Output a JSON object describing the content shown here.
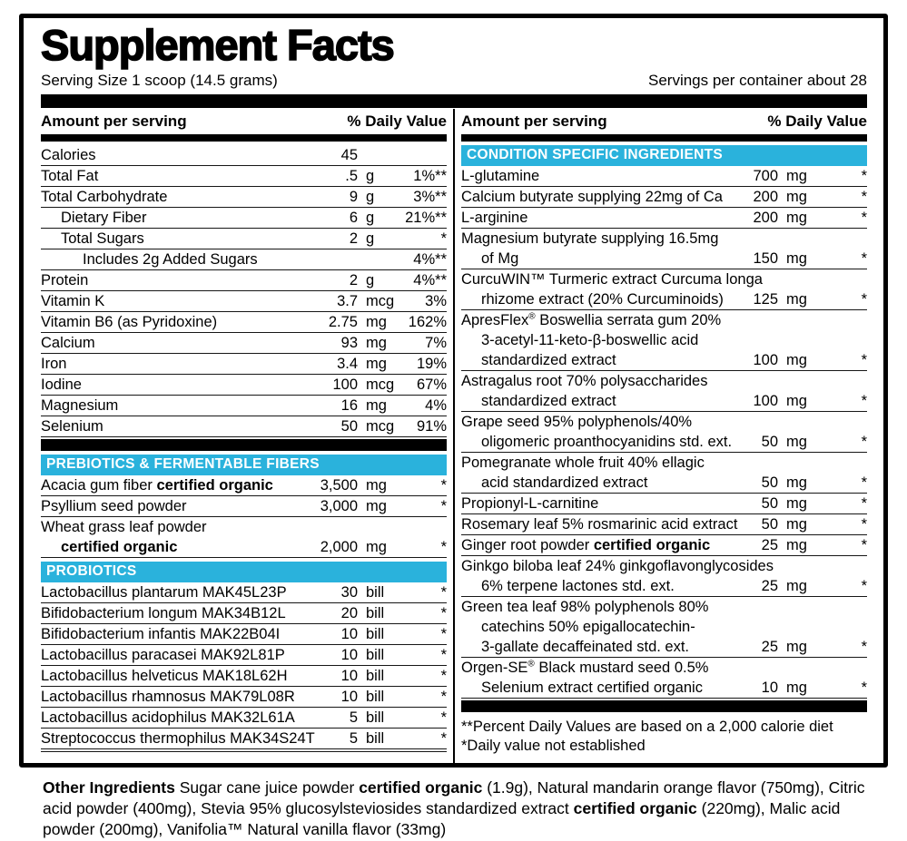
{
  "title": "Supplement Facts",
  "serving_size": "Serving Size 1 scoop (14.5 grams)",
  "servings_per_container": "Servings per container about 28",
  "column_header": {
    "amount": "Amount per serving",
    "daily_value": "% Daily Value"
  },
  "colors": {
    "accent_cyan": "#2ab2dc",
    "bar_black": "#000000",
    "background": "#ffffff"
  },
  "left_column": {
    "nutrients": [
      {
        "name": "Calories",
        "amount": "45",
        "unit": "",
        "dv": "",
        "indent": 0
      },
      {
        "name": "Total Fat",
        "amount": ".5",
        "unit": "g",
        "dv": "1%**",
        "indent": 0
      },
      {
        "name": "Total Carbohydrate",
        "amount": "9",
        "unit": "g",
        "dv": "3%**",
        "indent": 0
      },
      {
        "name": "Dietary Fiber",
        "amount": "6",
        "unit": "g",
        "dv": "21%**",
        "indent": 1
      },
      {
        "name": "Total Sugars",
        "amount": "2",
        "unit": "g",
        "dv": "*",
        "indent": 1
      },
      {
        "name": "Includes 2g Added Sugars",
        "amount": "",
        "unit": "",
        "dv": "4%**",
        "indent": 2
      },
      {
        "name": "Protein",
        "amount": "2",
        "unit": "g",
        "dv": "4%**",
        "indent": 0
      },
      {
        "name": "Vitamin K",
        "amount": "3.7",
        "unit": "mcg",
        "dv": "3%",
        "indent": 0
      },
      {
        "name": "Vitamin B6 (as Pyridoxine)",
        "amount": "2.75",
        "unit": "mg",
        "dv": "162%",
        "indent": 0
      },
      {
        "name": "Calcium",
        "amount": "93",
        "unit": "mg",
        "dv": "7%",
        "indent": 0
      },
      {
        "name": "Iron",
        "amount": "3.4",
        "unit": "mg",
        "dv": "19%",
        "indent": 0
      },
      {
        "name": "Iodine",
        "amount": "100",
        "unit": "mcg",
        "dv": "67%",
        "indent": 0
      },
      {
        "name": "Magnesium",
        "amount": "16",
        "unit": "mg",
        "dv": "4%",
        "indent": 0
      },
      {
        "name": "Selenium",
        "amount": "50",
        "unit": "mcg",
        "dv": "91%",
        "indent": 0
      }
    ],
    "sections": [
      {
        "header": "PREBIOTICS & FERMENTABLE FIBERS",
        "bar_before": true,
        "rows": [
          {
            "lines": [
              {
                "parts": [
                  {
                    "t": "Acacia gum fiber "
                  },
                  {
                    "t": "certified organic",
                    "b": true
                  }
                ]
              }
            ],
            "amount": "3,500",
            "unit": "mg",
            "dv": "*"
          },
          {
            "lines": [
              {
                "parts": [
                  {
                    "t": "Psyllium seed powder"
                  }
                ]
              }
            ],
            "amount": "3,000",
            "unit": "mg",
            "dv": "*"
          },
          {
            "lines": [
              {
                "parts": [
                  {
                    "t": "Wheat grass leaf powder"
                  }
                ]
              },
              {
                "parts": [
                  {
                    "t": "certified organic",
                    "b": true
                  }
                ],
                "ind": 1
              }
            ],
            "amount": "2,000",
            "unit": "mg",
            "dv": "*"
          }
        ]
      },
      {
        "header": "PROBIOTICS",
        "bar_before": false,
        "rows": [
          {
            "lines": [
              {
                "parts": [
                  {
                    "t": "Lactobacillus plantarum MAK45L23P"
                  }
                ]
              }
            ],
            "amount": "30",
            "unit": "bill",
            "dv": "*"
          },
          {
            "lines": [
              {
                "parts": [
                  {
                    "t": "Bifidobacterium longum MAK34B12L"
                  }
                ]
              }
            ],
            "amount": "20",
            "unit": "bill",
            "dv": "*"
          },
          {
            "lines": [
              {
                "parts": [
                  {
                    "t": "Bifidobacterium infantis MAK22B04I"
                  }
                ]
              }
            ],
            "amount": "10",
            "unit": "bill",
            "dv": "*"
          },
          {
            "lines": [
              {
                "parts": [
                  {
                    "t": "Lactobacillus paracasei MAK92L81P"
                  }
                ]
              }
            ],
            "amount": "10",
            "unit": "bill",
            "dv": "*"
          },
          {
            "lines": [
              {
                "parts": [
                  {
                    "t": "Lactobacillus helveticus MAK18L62H"
                  }
                ]
              }
            ],
            "amount": "10",
            "unit": "bill",
            "dv": "*"
          },
          {
            "lines": [
              {
                "parts": [
                  {
                    "t": "Lactobacillus rhamnosus MAK79L08R"
                  }
                ]
              }
            ],
            "amount": "10",
            "unit": "bill",
            "dv": "*"
          },
          {
            "lines": [
              {
                "parts": [
                  {
                    "t": "Lactobacillus acidophilus MAK32L61A"
                  }
                ]
              }
            ],
            "amount": "5",
            "unit": "bill",
            "dv": "*"
          },
          {
            "lines": [
              {
                "parts": [
                  {
                    "t": "Streptococcus thermophilus MAK34S24T"
                  }
                ]
              }
            ],
            "amount": "5",
            "unit": "bill",
            "dv": "*"
          }
        ]
      }
    ]
  },
  "right_column": {
    "section_header": "CONDITION SPECIFIC INGREDIENTS",
    "rows": [
      {
        "lines": [
          {
            "parts": [
              {
                "t": "L-glutamine"
              }
            ]
          }
        ],
        "amount": "700",
        "unit": "mg",
        "dv": "*"
      },
      {
        "lines": [
          {
            "parts": [
              {
                "t": "Calcium butyrate supplying 22mg of Ca"
              }
            ]
          }
        ],
        "amount": "200",
        "unit": "mg",
        "dv": "*"
      },
      {
        "lines": [
          {
            "parts": [
              {
                "t": "L-arginine"
              }
            ]
          }
        ],
        "amount": "200",
        "unit": "mg",
        "dv": "*"
      },
      {
        "lines": [
          {
            "parts": [
              {
                "t": "Magnesium butyrate supplying 16.5mg"
              }
            ]
          },
          {
            "parts": [
              {
                "t": "of Mg"
              }
            ],
            "ind": 1
          }
        ],
        "amount": "150",
        "unit": "mg",
        "dv": "*"
      },
      {
        "lines": [
          {
            "parts": [
              {
                "t": "CurcuWIN™ Turmeric extract Curcuma longa"
              }
            ]
          },
          {
            "parts": [
              {
                "t": "rhizome extract (20% Curcuminoids)"
              }
            ],
            "ind": 1
          }
        ],
        "amount": "125",
        "unit": "mg",
        "dv": "*"
      },
      {
        "lines": [
          {
            "parts": [
              {
                "t": "ApresFlex"
              },
              {
                "t": "®",
                "sup": true
              },
              {
                "t": " Boswellia serrata gum 20%"
              }
            ]
          },
          {
            "parts": [
              {
                "t": "3-acetyl-11-keto-β-boswellic acid"
              }
            ],
            "ind": 1
          },
          {
            "parts": [
              {
                "t": "standardized extract"
              }
            ],
            "ind": 1
          }
        ],
        "amount": "100",
        "unit": "mg",
        "dv": "*"
      },
      {
        "lines": [
          {
            "parts": [
              {
                "t": "Astragalus root 70% polysaccharides"
              }
            ]
          },
          {
            "parts": [
              {
                "t": "standardized extract"
              }
            ],
            "ind": 1
          }
        ],
        "amount": "100",
        "unit": "mg",
        "dv": "*"
      },
      {
        "lines": [
          {
            "parts": [
              {
                "t": "Grape seed 95% polyphenols/40%"
              }
            ]
          },
          {
            "parts": [
              {
                "t": "oligomeric proanthocyanidins std. ext."
              }
            ],
            "ind": 1
          }
        ],
        "amount": "50",
        "unit": "mg",
        "dv": "*"
      },
      {
        "lines": [
          {
            "parts": [
              {
                "t": "Pomegranate whole fruit 40% ellagic"
              }
            ]
          },
          {
            "parts": [
              {
                "t": "acid standardized extract"
              }
            ],
            "ind": 1
          }
        ],
        "amount": "50",
        "unit": "mg",
        "dv": "*"
      },
      {
        "lines": [
          {
            "parts": [
              {
                "t": "Propionyl-L-carnitine"
              }
            ]
          }
        ],
        "amount": "50",
        "unit": "mg",
        "dv": "*"
      },
      {
        "lines": [
          {
            "parts": [
              {
                "t": "Rosemary leaf 5% rosmarinic acid extract"
              }
            ]
          }
        ],
        "amount": "50",
        "unit": "mg",
        "dv": "*"
      },
      {
        "lines": [
          {
            "parts": [
              {
                "t": "Ginger root powder "
              },
              {
                "t": "certified organic",
                "b": true
              }
            ]
          }
        ],
        "amount": "25",
        "unit": "mg",
        "dv": "*"
      },
      {
        "lines": [
          {
            "parts": [
              {
                "t": "Ginkgo biloba leaf 24% ginkgoflavonglycosides"
              }
            ]
          },
          {
            "parts": [
              {
                "t": "6% terpene lactones std. ext."
              }
            ],
            "ind": 1
          }
        ],
        "amount": "25",
        "unit": "mg",
        "dv": "*"
      },
      {
        "lines": [
          {
            "parts": [
              {
                "t": "Green tea leaf 98% polyphenols 80%"
              }
            ]
          },
          {
            "parts": [
              {
                "t": "catechins 50% epigallocatechin-"
              }
            ],
            "ind": 1
          },
          {
            "parts": [
              {
                "t": "3-gallate decaffeinated std. ext."
              }
            ],
            "ind": 1
          }
        ],
        "amount": "25",
        "unit": "mg",
        "dv": "*"
      },
      {
        "lines": [
          {
            "parts": [
              {
                "t": "Orgen-SE"
              },
              {
                "t": "®",
                "sup": true
              },
              {
                "t": " Black mustard seed 0.5%"
              }
            ]
          },
          {
            "parts": [
              {
                "t": "Selenium extract certified organic"
              }
            ],
            "ind": 1
          }
        ],
        "amount": "10",
        "unit": "mg",
        "dv": "*"
      }
    ],
    "footnotes": [
      "**Percent Daily Values are based on a 2,000 calorie diet",
      "*Daily value not established"
    ]
  },
  "other_ingredients": {
    "parts": [
      {
        "t": "Other Ingredients ",
        "b": true
      },
      {
        "t": "Sugar cane juice powder "
      },
      {
        "t": "certified organic",
        "b": true
      },
      {
        "t": " (1.9g), Natural mandarin orange flavor (750mg), Citric acid powder (400mg), Stevia 95% glucosylsteviosides standardized extract "
      },
      {
        "t": "certified organic",
        "b": true
      },
      {
        "t": " (220mg), Malic acid powder (200mg), Vanifolia™ Natural vanilla flavor (33mg)"
      }
    ]
  }
}
